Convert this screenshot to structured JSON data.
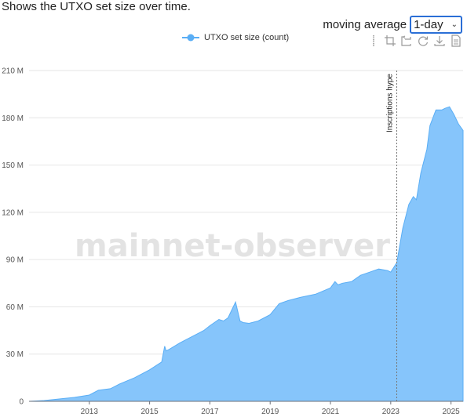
{
  "description": "Shows the UTXO set size over time.",
  "controls": {
    "moving_average_label": "moving average",
    "moving_average_value": "1-day"
  },
  "legend": {
    "label": "UTXO set size (count)"
  },
  "toolbox": {
    "icons": [
      "data-zoom-icon",
      "zoom-select-icon",
      "zoom-reset-icon",
      "restore-icon",
      "download-icon",
      "data-view-icon"
    ]
  },
  "watermark": "mainnet-observer",
  "colors": {
    "series_fill": "#86c5fb",
    "series_line": "#5aaef5",
    "grid": "#e6e6e6",
    "legend_dot": "#5aaef5"
  },
  "chart_data": {
    "type": "area",
    "title": "",
    "xlabel": "",
    "ylabel": "",
    "ylim": [
      0,
      210000000
    ],
    "xlim": [
      2011.0,
      2025.4
    ],
    "y_ticks": [
      0,
      30000000,
      60000000,
      90000000,
      120000000,
      150000000,
      180000000,
      210000000
    ],
    "y_tick_labels": [
      "0",
      "30 M",
      "60 M",
      "90 M",
      "120 M",
      "150 M",
      "180 M",
      "210 M"
    ],
    "x_ticks": [
      2013,
      2015,
      2017,
      2019,
      2021,
      2023,
      2025
    ],
    "x_tick_labels": [
      "2013",
      "2015",
      "2017",
      "2019",
      "2021",
      "2023",
      "2025"
    ],
    "grid": true,
    "legend_position": "top-center",
    "annotations": [
      {
        "x": 2023.2,
        "label": "Inscriptions hype"
      }
    ],
    "series": [
      {
        "name": "UTXO set size (count)",
        "x": [
          2011.0,
          2011.5,
          2012.0,
          2012.5,
          2013.0,
          2013.3,
          2013.7,
          2014.0,
          2014.5,
          2015.0,
          2015.4,
          2015.5,
          2015.55,
          2015.65,
          2016.0,
          2016.5,
          2016.8,
          2017.0,
          2017.3,
          2017.45,
          2017.6,
          2017.85,
          2018.0,
          2018.1,
          2018.3,
          2018.6,
          2019.0,
          2019.3,
          2019.6,
          2020.0,
          2020.5,
          2021.0,
          2021.15,
          2021.25,
          2021.4,
          2021.7,
          2022.0,
          2022.3,
          2022.6,
          2022.9,
          2023.0,
          2023.1,
          2023.2,
          2023.4,
          2023.6,
          2023.75,
          2023.85,
          2024.0,
          2024.2,
          2024.3,
          2024.5,
          2024.7,
          2024.8,
          2024.95,
          2025.1,
          2025.25,
          2025.4
        ],
        "values": [
          0,
          500000,
          1500000,
          2500000,
          4000000,
          7000000,
          8000000,
          11000000,
          15000000,
          20000000,
          25000000,
          35000000,
          32000000,
          33000000,
          37000000,
          42000000,
          45000000,
          48000000,
          52000000,
          51000000,
          53000000,
          63000000,
          51000000,
          50000000,
          49500000,
          51000000,
          55000000,
          62000000,
          64000000,
          66000000,
          68000000,
          72000000,
          76000000,
          74000000,
          75000000,
          76000000,
          80000000,
          82000000,
          84000000,
          83000000,
          82000000,
          85000000,
          88000000,
          110000000,
          125000000,
          130000000,
          128000000,
          145000000,
          160000000,
          175000000,
          185000000,
          185000000,
          186000000,
          187000000,
          182000000,
          176000000,
          172000000
        ]
      }
    ]
  }
}
